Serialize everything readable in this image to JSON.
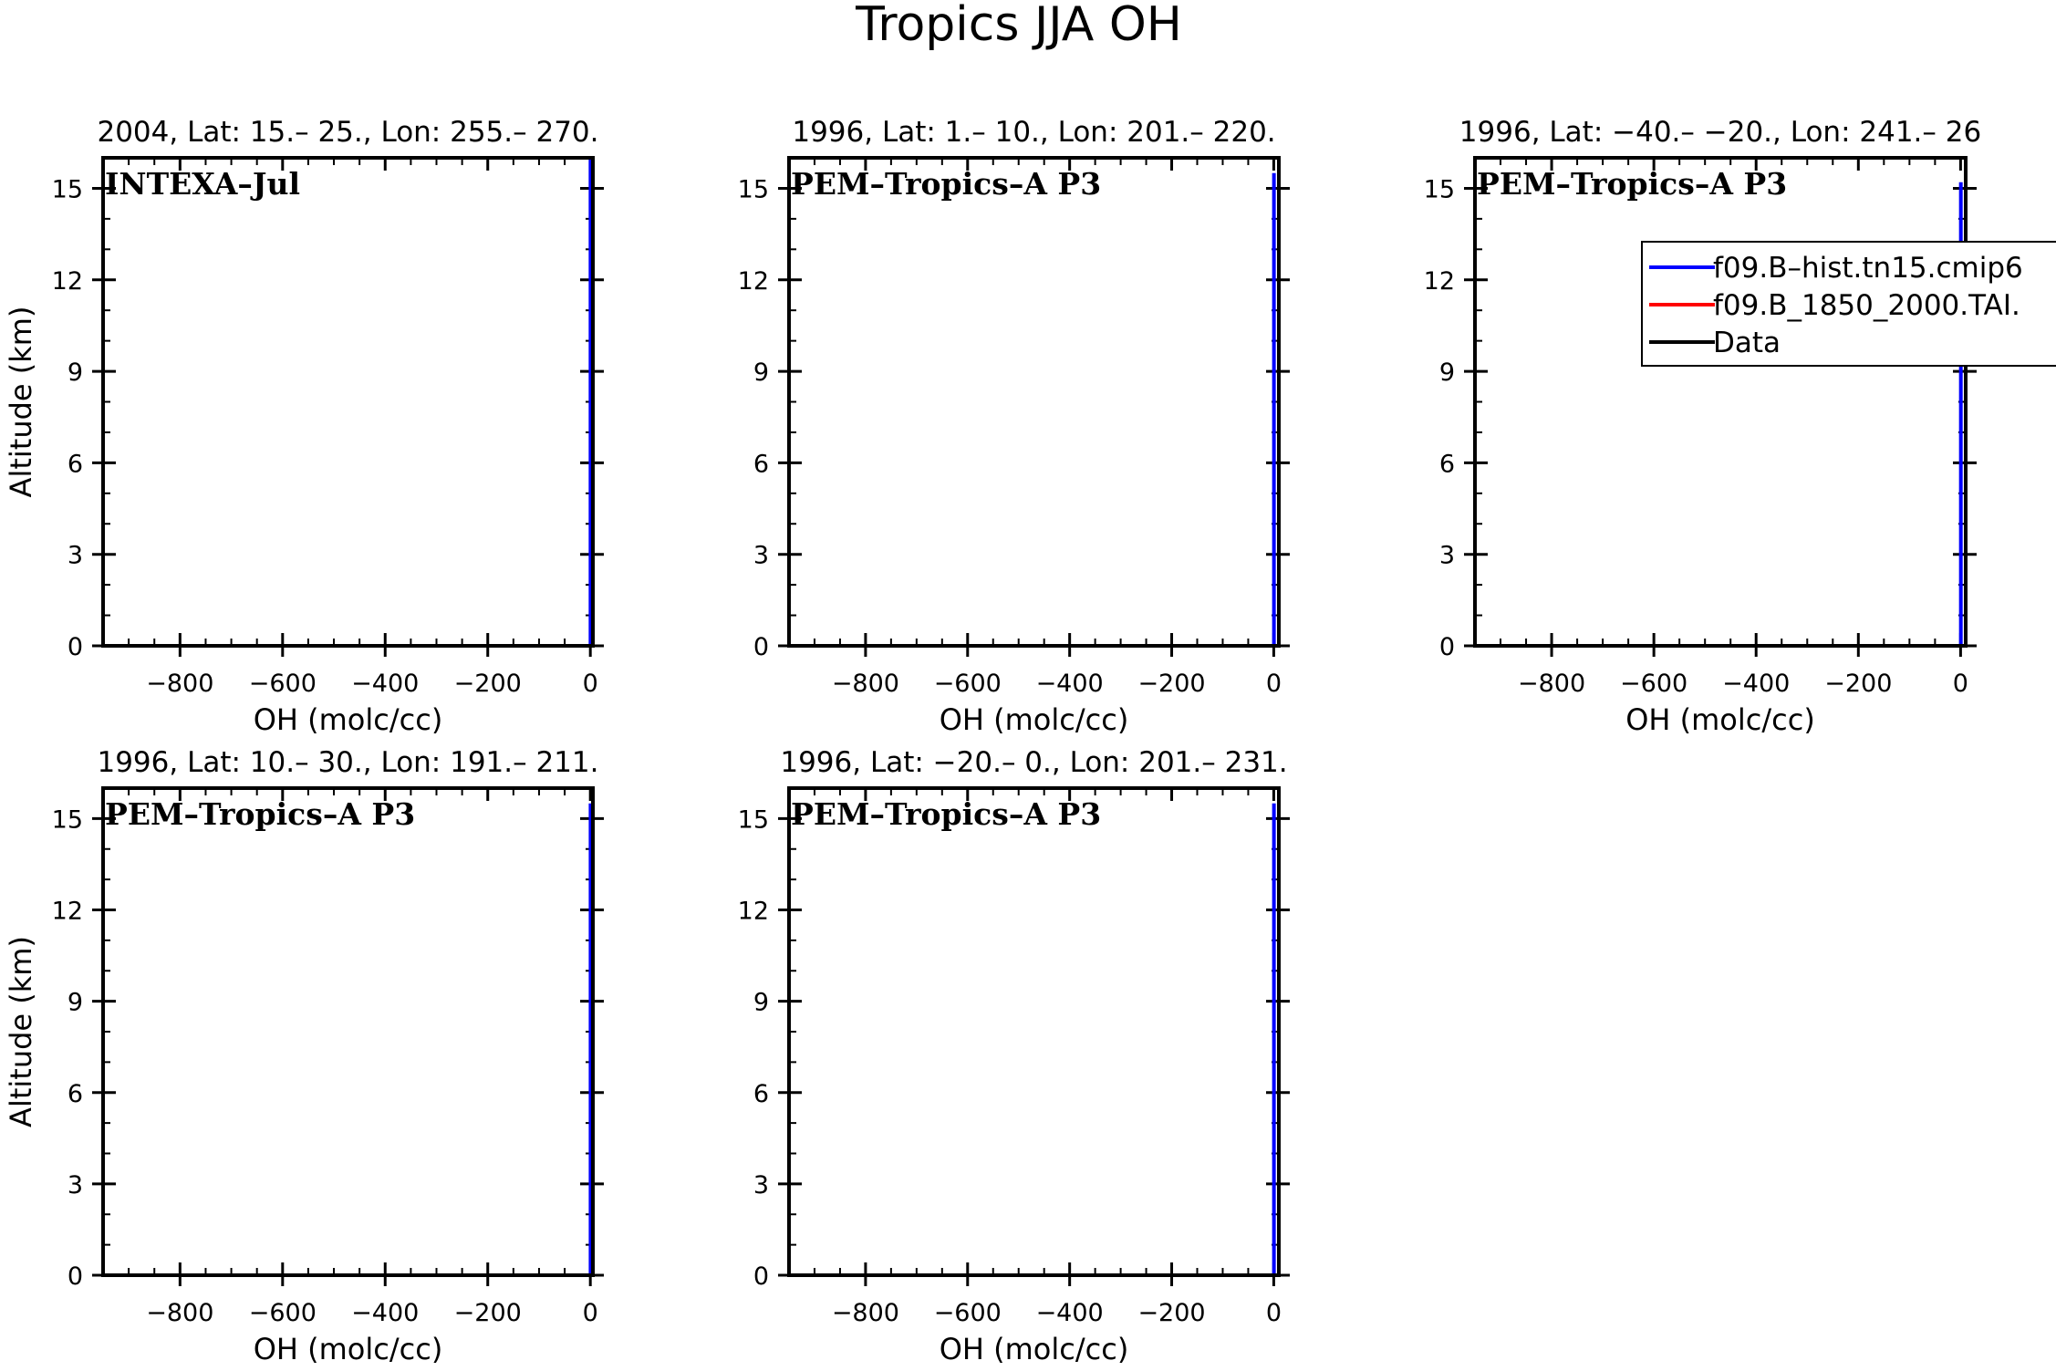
{
  "title": "Tropics JJA OH",
  "chart_data": [
    {
      "type": "line",
      "title": "2004, Lat: 15.– 25., Lon: 255.– 270.",
      "annotation": "INTEXA–Jul",
      "xlabel": "OH (molc/cc)",
      "ylabel": "Altitude (km)",
      "xlim": [
        -950,
        5
      ],
      "ylim": [
        0,
        16
      ],
      "xticks": [
        -800,
        -600,
        -400,
        -200,
        0
      ],
      "xtick_labels": [
        "−800",
        "−600",
        "−400",
        "−200",
        "0"
      ],
      "yticks": [
        0,
        3,
        6,
        9,
        12,
        15
      ],
      "ytick_labels": [
        "0",
        "3",
        "6",
        "9",
        "12",
        "15"
      ],
      "series": [
        {
          "name": "f09.B–hist.tn15.cmip6",
          "color": "#0000ff",
          "x": [
            0.3,
            0.3
          ],
          "y": [
            0,
            16
          ]
        }
      ]
    },
    {
      "type": "line",
      "title": "1996, Lat: 1.– 10., Lon: 201.– 220.",
      "annotation": "PEM–Tropics–A P3",
      "xlabel": "OH (molc/cc)",
      "ylabel": "",
      "xlim": [
        -950,
        10
      ],
      "ylim": [
        0,
        16
      ],
      "xticks": [
        -800,
        -600,
        -400,
        -200,
        0
      ],
      "xtick_labels": [
        "−800",
        "−600",
        "−400",
        "−200",
        "0"
      ],
      "yticks": [
        0,
        3,
        6,
        9,
        12,
        15
      ],
      "ytick_labels": [
        "0",
        "3",
        "6",
        "9",
        "12",
        "15"
      ],
      "series": [
        {
          "name": "f09.B–hist.tn15.cmip6",
          "color": "#0000ff",
          "x": [
            0.4,
            0.4
          ],
          "y": [
            0,
            15.5
          ]
        }
      ]
    },
    {
      "type": "line",
      "title": "1996, Lat: −40.– −20., Lon: 241.– 26",
      "annotation": "PEM–Tropics–A P3",
      "xlabel": "OH (molc/cc)",
      "ylabel": "",
      "xlim": [
        -950,
        10
      ],
      "ylim": [
        0,
        16
      ],
      "xticks": [
        -800,
        -600,
        -400,
        -200,
        0
      ],
      "xtick_labels": [
        "−800",
        "−600",
        "−400",
        "−200",
        "0"
      ],
      "yticks": [
        0,
        3,
        6,
        9,
        12,
        15
      ],
      "ytick_labels": [
        "0",
        "3",
        "6",
        "9",
        "12",
        "15"
      ],
      "series": [
        {
          "name": "f09.B–hist.tn15.cmip6",
          "color": "#0000ff",
          "x": [
            0.5,
            0.5
          ],
          "y": [
            0,
            15.2
          ]
        }
      ],
      "legend": {
        "placement": "upper-right",
        "entries": [
          {
            "label": "f09.B–hist.tn15.cmip6",
            "color": "#0000ff"
          },
          {
            "label": "f09.B_1850_2000.TAI.",
            "color": "#ff0000"
          },
          {
            "label": "Data",
            "color": "#000000"
          }
        ]
      }
    },
    {
      "type": "line",
      "title": "1996, Lat: 10.– 30., Lon: 191.– 211.",
      "annotation": "PEM–Tropics–A P3",
      "xlabel": "OH (molc/cc)",
      "ylabel": "Altitude (km)",
      "xlim": [
        -950,
        5
      ],
      "ylim": [
        0,
        16
      ],
      "xticks": [
        -800,
        -600,
        -400,
        -200,
        0
      ],
      "xtick_labels": [
        "−800",
        "−600",
        "−400",
        "−200",
        "0"
      ],
      "yticks": [
        0,
        3,
        6,
        9,
        12,
        15
      ],
      "ytick_labels": [
        "0",
        "3",
        "6",
        "9",
        "12",
        "15"
      ],
      "series": [
        {
          "name": "f09.B–hist.tn15.cmip6",
          "color": "#0000ff",
          "x": [
            0.4,
            0.4
          ],
          "y": [
            0,
            15.5
          ]
        }
      ]
    },
    {
      "type": "line",
      "title": "1996, Lat: −20.– 0., Lon: 201.– 231.",
      "annotation": "PEM–Tropics–A P3",
      "xlabel": "OH (molc/cc)",
      "ylabel": "",
      "xlim": [
        -950,
        10
      ],
      "ylim": [
        0,
        16
      ],
      "xticks": [
        -800,
        -600,
        -400,
        -200,
        0
      ],
      "xtick_labels": [
        "−800",
        "−600",
        "−400",
        "−200",
        "0"
      ],
      "yticks": [
        0,
        3,
        6,
        9,
        12,
        15
      ],
      "ytick_labels": [
        "0",
        "3",
        "6",
        "9",
        "12",
        "15"
      ],
      "series": [
        {
          "name": "f09.B–hist.tn15.cmip6",
          "color": "#0000ff",
          "x": [
            0.4,
            0.4
          ],
          "y": [
            0,
            15.5
          ]
        }
      ]
    }
  ]
}
